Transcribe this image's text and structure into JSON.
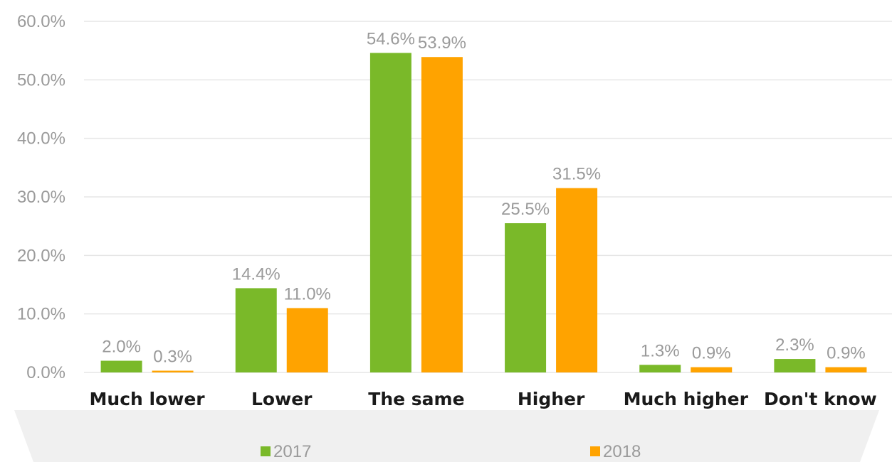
{
  "chart_data": {
    "type": "bar",
    "categories": [
      "Much lower",
      "Lower",
      "The same",
      "Higher",
      "Much higher",
      "Don't know"
    ],
    "series": [
      {
        "name": "2017",
        "values": [
          2.0,
          14.4,
          54.6,
          25.5,
          1.3,
          2.3
        ],
        "labels": [
          "2.0%",
          "14.4%",
          "54.6%",
          "25.5%",
          "1.3%",
          "2.3%"
        ],
        "color": "#7ab929"
      },
      {
        "name": "2018",
        "values": [
          0.3,
          11.0,
          53.9,
          31.5,
          0.9,
          0.9
        ],
        "labels": [
          "0.3%",
          "11.0%",
          "53.9%",
          "31.5%",
          "0.9%",
          "0.9%"
        ],
        "color": "#ffa300"
      }
    ],
    "yticks": [
      "0.0%",
      "10.0%",
      "20.0%",
      "30.0%",
      "40.0%",
      "50.0%",
      "60.0%"
    ],
    "ylim": [
      0,
      60
    ],
    "grid": true,
    "legend": "bottom",
    "grid_color": "#e6e6e6",
    "legend_band_color": "#f0f0f0",
    "title": "",
    "xlabel": "",
    "ylabel": ""
  }
}
